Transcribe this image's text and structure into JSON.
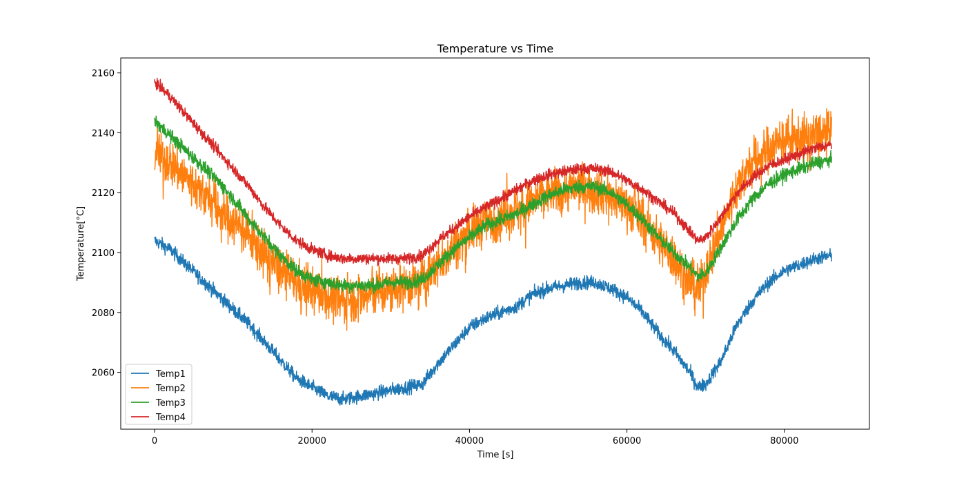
{
  "chart_data": {
    "type": "line",
    "title": "Temperature vs Time",
    "xlabel": "Time [s]",
    "ylabel": "Temperature[°C]",
    "xlim": [
      -4300,
      90800
    ],
    "ylim": [
      2041,
      2165
    ],
    "xticks": [
      0,
      20000,
      40000,
      60000,
      80000
    ],
    "yticks": [
      2060,
      2080,
      2100,
      2120,
      2140,
      2160
    ],
    "grid": false,
    "legend": "lower-left",
    "series": [
      {
        "name": "Temp1",
        "color": "#1f77b4",
        "noise": 1.6,
        "x": [
          0,
          2000,
          4000,
          6000,
          8000,
          10000,
          12000,
          14000,
          16000,
          18000,
          20000,
          22000,
          24000,
          26000,
          28000,
          30000,
          32000,
          34000,
          36000,
          38000,
          40000,
          42000,
          44000,
          46000,
          48000,
          50000,
          52000,
          54000,
          56000,
          58000,
          60000,
          62000,
          64000,
          66000,
          68000,
          69000,
          70000,
          72000,
          74000,
          76000,
          78000,
          80000,
          82000,
          84000,
          86000
        ],
        "y": [
          2104,
          2101,
          2096,
          2091,
          2086,
          2081,
          2076,
          2070,
          2064,
          2058,
          2055,
          2052,
          2051,
          2052,
          2053,
          2054,
          2055,
          2056,
          2063,
          2069,
          2075,
          2078,
          2080,
          2082,
          2086,
          2088,
          2089,
          2090,
          2090,
          2088,
          2085,
          2080,
          2073,
          2067,
          2060,
          2055,
          2056,
          2064,
          2076,
          2084,
          2090,
          2094,
          2096,
          2098,
          2099
        ]
      },
      {
        "name": "Temp2",
        "color": "#ff7f0e",
        "noise": 5.5,
        "x": [
          0,
          2000,
          4000,
          6000,
          8000,
          10000,
          12000,
          14000,
          16000,
          18000,
          20000,
          22000,
          24000,
          26000,
          28000,
          30000,
          32000,
          34000,
          36000,
          38000,
          40000,
          42000,
          44000,
          46000,
          48000,
          50000,
          52000,
          54000,
          56000,
          58000,
          60000,
          62000,
          64000,
          66000,
          68000,
          69000,
          70000,
          72000,
          74000,
          76000,
          78000,
          80000,
          82000,
          84000,
          86000
        ],
        "y": [
          2133,
          2130,
          2125,
          2120,
          2115,
          2110,
          2105,
          2099,
          2094,
          2090,
          2087,
          2085,
          2084,
          2085,
          2086,
          2087,
          2089,
          2090,
          2096,
          2102,
          2107,
          2110,
          2112,
          2114,
          2117,
          2120,
          2121,
          2122,
          2121,
          2119,
          2116,
          2111,
          2104,
          2098,
          2090,
          2086,
          2094,
          2108,
          2122,
          2130,
          2135,
          2137,
          2138,
          2139,
          2140
        ]
      },
      {
        "name": "Temp3",
        "color": "#2ca02c",
        "noise": 1.6,
        "x": [
          0,
          2000,
          4000,
          6000,
          8000,
          10000,
          12000,
          14000,
          16000,
          18000,
          20000,
          22000,
          24000,
          26000,
          28000,
          30000,
          32000,
          34000,
          36000,
          38000,
          40000,
          42000,
          44000,
          46000,
          48000,
          50000,
          52000,
          54000,
          56000,
          58000,
          60000,
          62000,
          64000,
          66000,
          68000,
          69000,
          70000,
          72000,
          74000,
          76000,
          78000,
          80000,
          82000,
          84000,
          86000
        ],
        "y": [
          2144,
          2139,
          2134,
          2129,
          2124,
          2118,
          2111,
          2105,
          2099,
          2094,
          2091,
          2090,
          2089,
          2089,
          2089,
          2090,
          2090,
          2091,
          2096,
          2101,
          2105,
          2109,
          2111,
          2113,
          2116,
          2119,
          2121,
          2122,
          2122,
          2120,
          2116,
          2111,
          2105,
          2100,
          2095,
          2092,
          2093,
          2102,
          2111,
          2118,
          2123,
          2126,
          2128,
          2130,
          2131
        ]
      },
      {
        "name": "Temp4",
        "color": "#d62728",
        "noise": 1.3,
        "x": [
          0,
          2000,
          4000,
          6000,
          8000,
          10000,
          12000,
          14000,
          16000,
          18000,
          20000,
          22000,
          24000,
          26000,
          28000,
          30000,
          32000,
          34000,
          36000,
          38000,
          40000,
          42000,
          44000,
          46000,
          48000,
          50000,
          52000,
          54000,
          56000,
          58000,
          60000,
          62000,
          64000,
          66000,
          68000,
          69000,
          70000,
          72000,
          74000,
          76000,
          78000,
          80000,
          82000,
          84000,
          86000
        ],
        "y": [
          2157,
          2152,
          2146,
          2140,
          2134,
          2128,
          2122,
          2115,
          2109,
          2104,
          2101,
          2099,
          2098,
          2098,
          2098,
          2098,
          2098,
          2099,
          2104,
          2108,
          2112,
          2115,
          2118,
          2121,
          2124,
          2126,
          2127,
          2128,
          2128,
          2127,
          2124,
          2121,
          2117,
          2113,
          2107,
          2104,
          2105,
          2112,
          2120,
          2125,
          2129,
          2131,
          2133,
          2135,
          2136
        ]
      }
    ]
  }
}
